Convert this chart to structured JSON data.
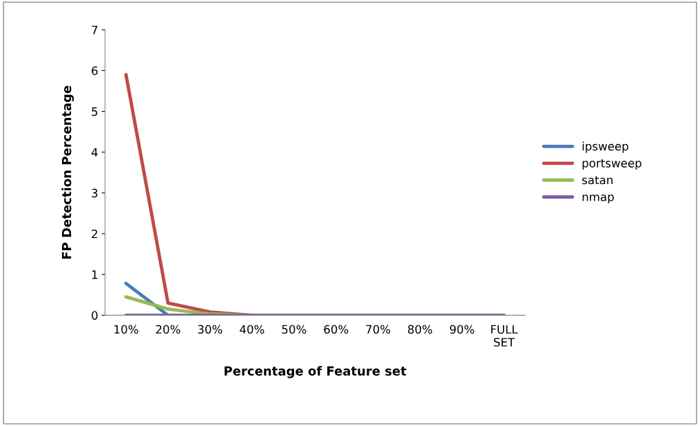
{
  "chart_data": {
    "type": "line",
    "xlabel": "Percentage of Feature set",
    "ylabel": "FP Detection Percentage",
    "categories": [
      "10%",
      "20%",
      "30%",
      "40%",
      "50%",
      "60%",
      "70%",
      "80%",
      "90%",
      "FULL SET"
    ],
    "series": [
      {
        "name": "ipsweep",
        "color": "#4a7ebb",
        "values": [
          0.78,
          0,
          null,
          null,
          null,
          null,
          null,
          null,
          null,
          null
        ]
      },
      {
        "name": "portsweep",
        "color": "#be4b48",
        "values": [
          5.9,
          0.3,
          0.08,
          0,
          null,
          null,
          null,
          null,
          null,
          null
        ]
      },
      {
        "name": "satan",
        "color": "#98b954",
        "values": [
          0.45,
          0.15,
          0.03,
          0,
          null,
          null,
          null,
          null,
          null,
          null
        ]
      },
      {
        "name": "nmap",
        "color": "#7d60a0",
        "values": [
          0,
          0,
          0,
          0,
          0,
          0,
          0,
          0,
          0,
          0
        ]
      }
    ],
    "ylim": [
      0,
      7
    ],
    "yticks": [
      0,
      1,
      2,
      3,
      4,
      5,
      6,
      7
    ],
    "grid": false,
    "legend": "right",
    "marker": "none",
    "line_style": "solid"
  }
}
